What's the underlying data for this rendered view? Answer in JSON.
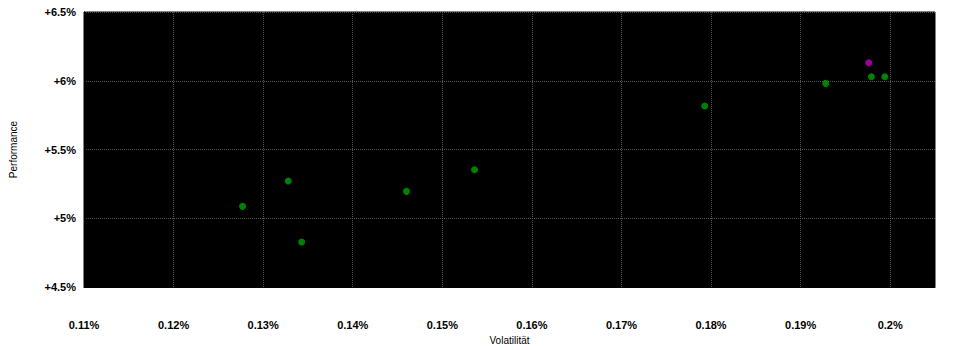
{
  "chart_data": {
    "type": "scatter",
    "x_label": "Volatilität",
    "y_label": "Performance",
    "xlim": [
      0.11,
      0.205
    ],
    "xticks": [
      {
        "value": 0.11,
        "label": "0.11%"
      },
      {
        "value": 0.12,
        "label": "0.12%"
      },
      {
        "value": 0.13,
        "label": "0.13%"
      },
      {
        "value": 0.14,
        "label": "0.14%"
      },
      {
        "value": 0.15,
        "label": "0.15%"
      },
      {
        "value": 0.16,
        "label": "0.16%"
      },
      {
        "value": 0.17,
        "label": "0.17%"
      },
      {
        "value": 0.18,
        "label": "0.18%"
      },
      {
        "value": 0.19,
        "label": "0.19%"
      },
      {
        "value": 0.2,
        "label": "0.2%"
      }
    ],
    "ylim": [
      4.5,
      6.5
    ],
    "yticks": [
      {
        "value": 4.5,
        "label": "+4.5%"
      },
      {
        "value": 5,
        "label": "+5%"
      },
      {
        "value": 5.5,
        "label": "+5.5%"
      },
      {
        "value": 6,
        "label": "+6%"
      },
      {
        "value": 6.5,
        "label": "+6.5%"
      }
    ],
    "grid": true,
    "series": [
      {
        "color": "#00a000",
        "marker": "circle",
        "values": [
          [
            0.1277,
            5.087
          ],
          [
            0.1328,
            5.271
          ],
          [
            0.1343,
            4.828
          ],
          [
            0.146,
            5.196
          ],
          [
            0.1536,
            5.353
          ],
          [
            0.1793,
            5.817
          ],
          [
            0.1928,
            5.981
          ],
          [
            0.1979,
            6.029
          ],
          [
            0.1994,
            6.029
          ]
        ]
      },
      {
        "color": "#c000c0",
        "marker": "circle",
        "values": [
          [
            0.1976,
            6.131
          ]
        ]
      }
    ]
  }
}
